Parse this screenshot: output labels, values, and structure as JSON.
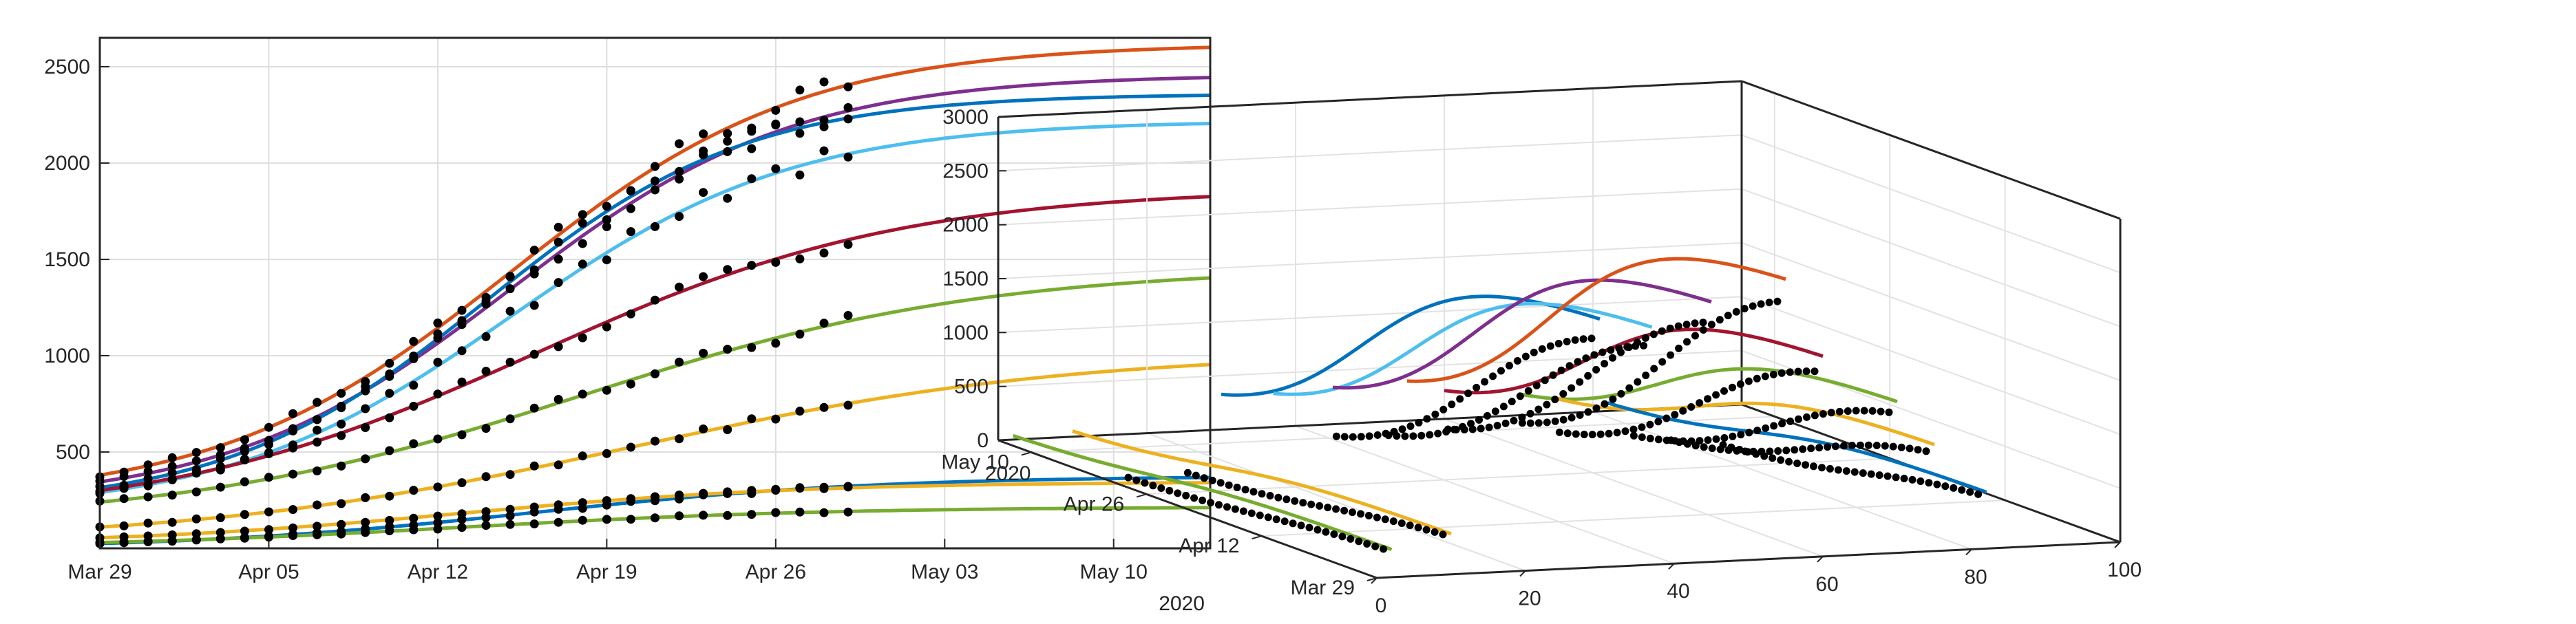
{
  "figure": {
    "background": "#ffffff"
  },
  "chart_data": [
    {
      "type": "line",
      "panel": "left-2d",
      "title": "",
      "xlabel": "",
      "ylabel": "",
      "x_axis": {
        "type": "date",
        "range": [
          "2020-03-29",
          "2020-05-14"
        ],
        "ticks": [
          "Mar 29",
          "Apr 05",
          "Apr 12",
          "Apr 19",
          "Apr 26",
          "May 03",
          "May 10"
        ],
        "secondary_label": "2020"
      },
      "y_axis": {
        "range": [
          0,
          2650
        ],
        "ticks": [
          500,
          1000,
          1500,
          2000,
          2500
        ]
      },
      "grid": true,
      "legend": "none",
      "markers": "black dots for observed data, Mar 29 to Apr 29",
      "series": [
        {
          "color": "#D95319",
          "fit": {
            "start": 380,
            "final": 2620,
            "midpoint": "2020-04-15",
            "rate": 0.165
          },
          "observed_on_fit": true
        },
        {
          "color": "#7E2F8E",
          "fit": {
            "start": 345,
            "final": 2460,
            "midpoint": "2020-04-15",
            "rate": 0.17
          },
          "observed_on_fit": true
        },
        {
          "color": "#0072BD",
          "fit": {
            "start": 315,
            "final": 2360,
            "midpoint": "2020-04-14",
            "rate": 0.185
          },
          "observed_on_fit": true
        },
        {
          "color": "#4DBEEE",
          "fit": {
            "start": 290,
            "final": 2220,
            "midpoint": "2020-04-15",
            "rate": 0.17
          },
          "observed_on_fit": true
        },
        {
          "color": "#A2142F",
          "fit": {
            "start": 300,
            "final": 1870,
            "midpoint": "2020-04-16",
            "rate": 0.13
          },
          "observed_on_fit": true
        },
        {
          "color": "#77AC30",
          "fit": {
            "start": 240,
            "final": 1460,
            "midpoint": "2020-04-18",
            "rate": 0.12
          },
          "observed_on_fit": true
        },
        {
          "color": "#EDB120",
          "fit": {
            "start": 110,
            "final": 1020,
            "midpoint": "2020-04-20",
            "rate": 0.11
          },
          "observed_on_fit": true
        },
        {
          "color": "#0072BD",
          "fit": {
            "start": 25,
            "final": 375,
            "midpoint": "2020-04-16",
            "rate": 0.14
          },
          "observed_on_fit": true
        },
        {
          "color": "#EDB120",
          "fit": {
            "start": 55,
            "final": 345,
            "midpoint": "2020-04-13",
            "rate": 0.14
          },
          "observed_on_fit": true
        },
        {
          "color": "#77AC30",
          "fit": {
            "start": 30,
            "final": 215,
            "midpoint": "2020-04-13",
            "rate": 0.13
          },
          "observed_on_fit": true
        }
      ]
    },
    {
      "type": "line",
      "panel": "right-3d",
      "title": "",
      "x_axis": {
        "range": [
          0,
          100
        ],
        "ticks": [
          0,
          20,
          40,
          60,
          80,
          100
        ]
      },
      "y_axis": {
        "type": "date",
        "ticks": [
          "Mar 29",
          "Apr 12",
          "Apr 26",
          "May 10"
        ],
        "secondary_label": "2020"
      },
      "z_axis": {
        "range": [
          0,
          3000
        ],
        "ticks": [
          0,
          500,
          1000,
          1500,
          2000,
          2500,
          3000
        ]
      },
      "grid": true,
      "legend": "none",
      "markers": "black dots for observed data",
      "series": [
        {
          "color": "#77AC30",
          "x": 2,
          "final": 260
        },
        {
          "color": "#EDB120",
          "x": 10,
          "final": 380
        },
        {
          "color": "#0072BD",
          "x": 30,
          "final": 2330
        },
        {
          "color": "#4DBEEE",
          "x": 37,
          "final": 2230
        },
        {
          "color": "#7E2F8E",
          "x": 45,
          "final": 2440
        },
        {
          "color": "#D95319",
          "x": 55,
          "final": 2620
        },
        {
          "color": "#A2142F",
          "x": 60,
          "final": 1880
        },
        {
          "color": "#77AC30",
          "x": 70,
          "final": 1420
        },
        {
          "color": "#EDB120",
          "x": 75,
          "final": 1000
        },
        {
          "color": "#0072BD",
          "x": 82,
          "final": 530
        }
      ]
    }
  ],
  "labels": {
    "left_x_year": "2020",
    "right_y_year": "2020"
  }
}
